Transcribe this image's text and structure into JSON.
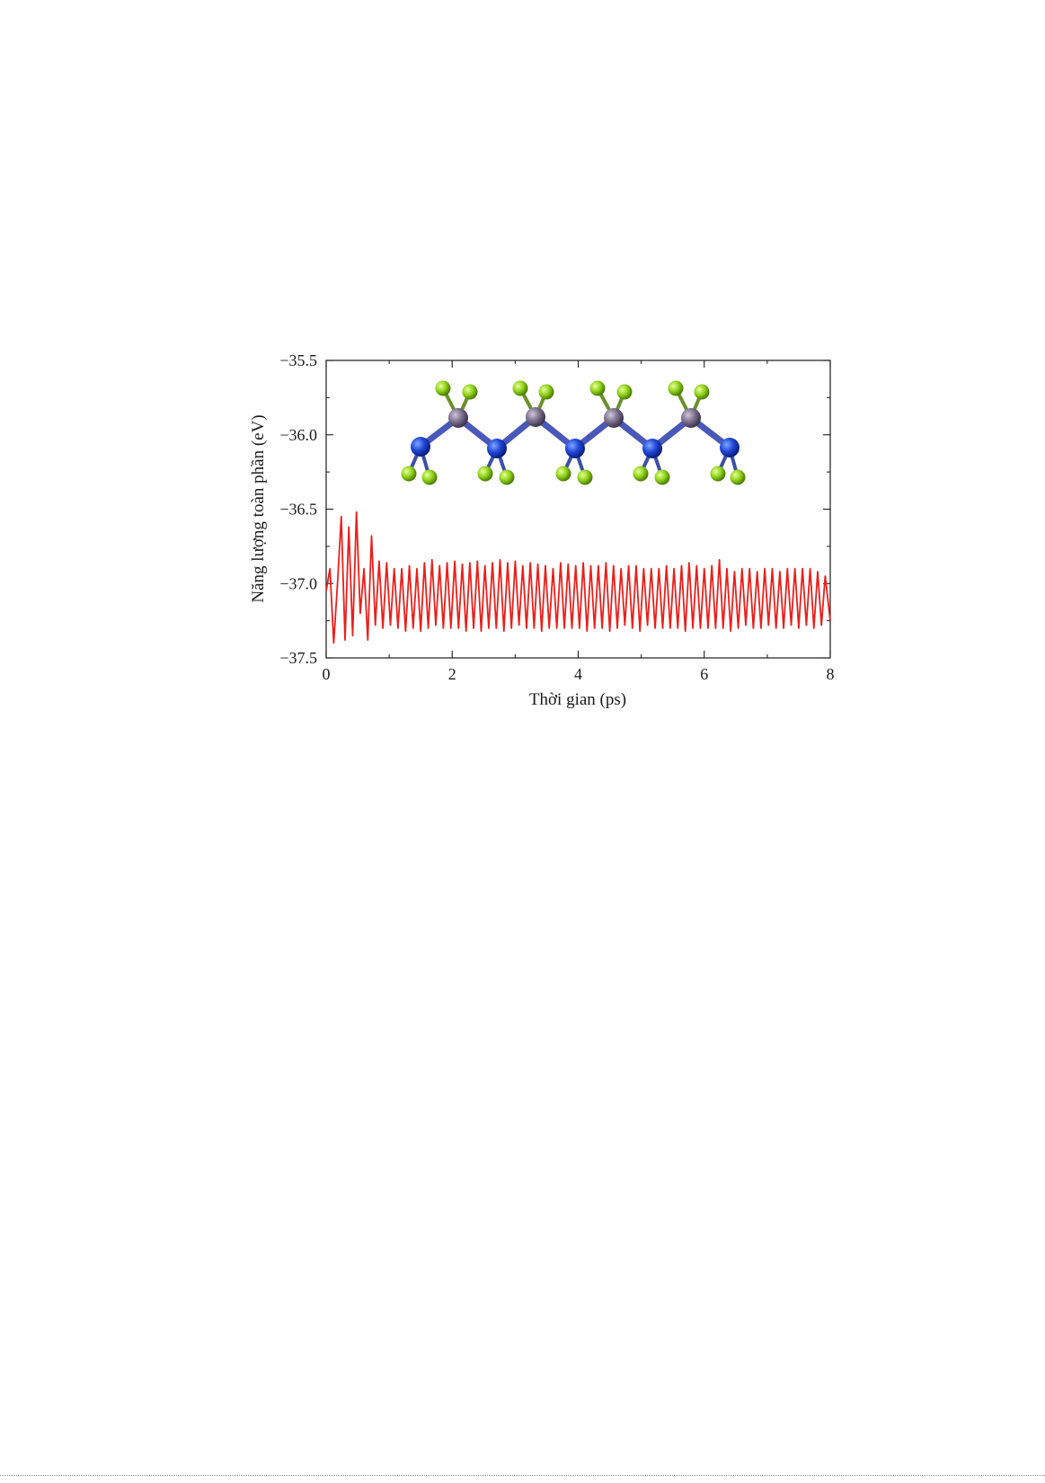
{
  "chart_data": {
    "type": "line",
    "title": "",
    "xlabel": "Thời gian (ps)",
    "ylabel": "Năng lượng toàn phần (eV)",
    "xlim": [
      0,
      8
    ],
    "ylim": [
      -37.5,
      -35.5
    ],
    "x_ticks": [
      0,
      2,
      4,
      6,
      8
    ],
    "x_tick_labels": [
      "0",
      "2",
      "4",
      "6",
      "8"
    ],
    "y_ticks": [
      -35.5,
      -36.0,
      -36.5,
      -37.0,
      -37.5
    ],
    "y_tick_labels": [
      "−35.5",
      "−36.0",
      "−36.5",
      "−37.0",
      "−37.5"
    ],
    "grid": false,
    "legend": "none",
    "inset": "molecular chain structure (top view): alternating blue and grey atoms with green terminal atoms",
    "colors": {
      "line": "#e8201c",
      "axis": "#1a1a1a"
    },
    "series": [
      {
        "x": [
          0.0,
          0.06,
          0.12,
          0.18,
          0.24,
          0.3,
          0.36,
          0.42,
          0.48,
          0.54,
          0.6,
          0.66,
          0.72,
          0.78,
          0.84,
          0.9,
          0.96,
          1.02,
          1.08,
          1.14,
          1.2,
          1.26,
          1.32,
          1.38,
          1.44,
          1.5,
          1.56,
          1.62,
          1.68,
          1.74,
          1.8,
          1.86,
          1.92,
          1.98,
          2.04,
          2.1,
          2.16,
          2.22,
          2.28,
          2.34,
          2.4,
          2.46,
          2.52,
          2.58,
          2.64,
          2.7,
          2.76,
          2.82,
          2.88,
          2.94,
          3.0,
          3.06,
          3.12,
          3.18,
          3.24,
          3.3,
          3.36,
          3.42,
          3.48,
          3.54,
          3.6,
          3.66,
          3.72,
          3.78,
          3.84,
          3.9,
          3.96,
          4.02,
          4.08,
          4.14,
          4.2,
          4.26,
          4.32,
          4.38,
          4.44,
          4.5,
          4.56,
          4.62,
          4.68,
          4.74,
          4.8,
          4.86,
          4.92,
          4.98,
          5.04,
          5.1,
          5.16,
          5.22,
          5.28,
          5.34,
          5.4,
          5.46,
          5.52,
          5.58,
          5.64,
          5.7,
          5.76,
          5.82,
          5.88,
          5.94,
          6.0,
          6.06,
          6.12,
          6.18,
          6.24,
          6.3,
          6.36,
          6.42,
          6.48,
          6.54,
          6.6,
          6.66,
          6.72,
          6.78,
          6.84,
          6.9,
          6.96,
          7.02,
          7.08,
          7.14,
          7.2,
          7.26,
          7.32,
          7.38,
          7.44,
          7.5,
          7.56,
          7.62,
          7.68,
          7.74,
          7.8,
          7.86,
          7.92,
          8.0
        ],
        "values": [
          -37.05,
          -36.9,
          -37.4,
          -37.0,
          -36.55,
          -37.38,
          -36.62,
          -37.35,
          -36.52,
          -37.2,
          -36.9,
          -37.38,
          -36.68,
          -37.28,
          -36.85,
          -37.3,
          -36.86,
          -37.28,
          -36.9,
          -37.3,
          -36.9,
          -37.32,
          -36.88,
          -37.3,
          -36.9,
          -37.32,
          -36.86,
          -37.3,
          -36.84,
          -37.28,
          -36.88,
          -37.3,
          -36.86,
          -37.3,
          -36.85,
          -37.3,
          -36.87,
          -37.32,
          -36.86,
          -37.3,
          -36.85,
          -37.32,
          -36.88,
          -37.3,
          -36.86,
          -37.3,
          -36.84,
          -37.32,
          -36.86,
          -37.3,
          -36.85,
          -37.28,
          -36.88,
          -37.3,
          -36.86,
          -37.3,
          -36.87,
          -37.32,
          -36.88,
          -37.3,
          -36.9,
          -37.3,
          -36.86,
          -37.3,
          -36.87,
          -37.3,
          -36.88,
          -37.3,
          -36.86,
          -37.32,
          -36.88,
          -37.3,
          -36.88,
          -37.3,
          -36.86,
          -37.32,
          -36.88,
          -37.3,
          -36.9,
          -37.28,
          -36.88,
          -37.3,
          -36.88,
          -37.32,
          -36.9,
          -37.28,
          -36.9,
          -37.3,
          -36.9,
          -37.3,
          -36.88,
          -37.3,
          -36.9,
          -37.3,
          -36.88,
          -37.32,
          -36.86,
          -37.3,
          -36.88,
          -37.3,
          -36.9,
          -37.3,
          -36.88,
          -37.3,
          -36.84,
          -37.3,
          -36.9,
          -37.32,
          -36.92,
          -37.3,
          -36.9,
          -37.28,
          -36.9,
          -37.3,
          -36.92,
          -37.3,
          -36.9,
          -37.28,
          -36.9,
          -37.3,
          -36.92,
          -37.3,
          -36.9,
          -37.28,
          -36.9,
          -37.3,
          -36.9,
          -37.28,
          -36.9,
          -37.3,
          -36.92,
          -37.28,
          -36.95,
          -37.25
        ]
      }
    ]
  }
}
